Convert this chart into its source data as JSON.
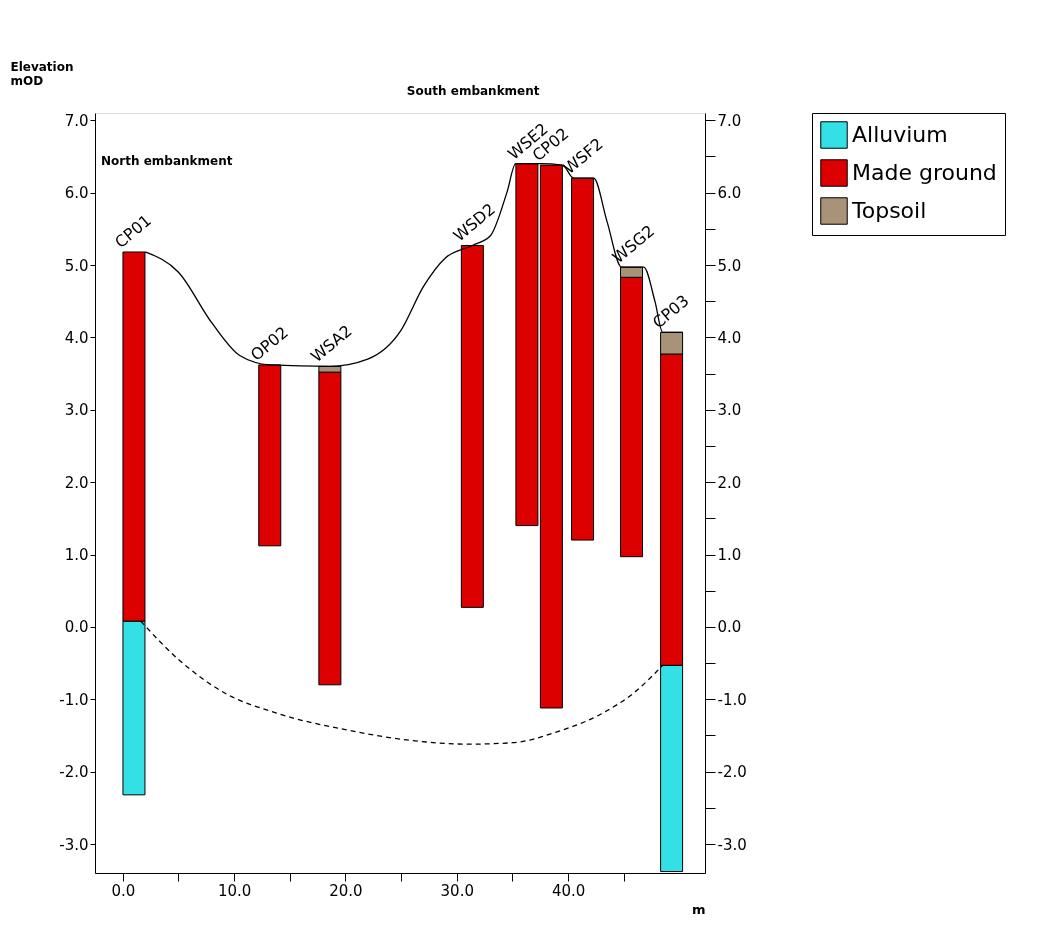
{
  "chart_data": {
    "type": "bar",
    "ylabel": "Elevation\nmOD",
    "xlabel": "m",
    "x": [
      1.0,
      13.2,
      18.6,
      31.4,
      36.3,
      38.5,
      41.3,
      45.7,
      49.3
    ],
    "series": [
      {
        "name": "Alluvium",
        "color": "#33e0e6",
        "base": [
          -2.32,
          null,
          null,
          null,
          null,
          null,
          null,
          null,
          -3.38
        ],
        "values": [
          2.4,
          null,
          null,
          null,
          null,
          null,
          null,
          null,
          2.85
        ]
      },
      {
        "name": "Made ground",
        "color": "#dd0000",
        "base": [
          0.08,
          1.12,
          -0.8,
          0.27,
          1.4,
          -1.12,
          1.2,
          0.97,
          -0.53
        ],
        "values": [
          5.1,
          2.5,
          4.32,
          5.0,
          5.0,
          7.5,
          5.0,
          3.86,
          4.3
        ]
      },
      {
        "name": "Topsoil",
        "color": "#a89278",
        "base": [
          null,
          null,
          3.52,
          null,
          null,
          null,
          null,
          4.83,
          3.77
        ],
        "values": [
          null,
          null,
          0.08,
          null,
          null,
          null,
          null,
          0.14,
          0.3
        ]
      },
      {
        "type": "line",
        "color": "#000000",
        "line_style": "solid",
        "x": [
          2.0,
          5.0,
          8.0,
          10.5,
          13.2,
          18.6,
          22.0,
          25.0,
          27.0,
          29.0,
          31.4,
          33.0,
          34.5,
          35.3,
          37.5,
          39.5,
          40.5,
          42.3,
          43.5,
          44.8,
          46.8,
          47.8,
          48.5,
          50.3
        ],
        "values": [
          5.18,
          4.9,
          4.2,
          3.75,
          3.62,
          3.6,
          3.7,
          4.1,
          4.7,
          5.1,
          5.27,
          5.4,
          6.0,
          6.4,
          6.4,
          6.38,
          6.2,
          6.2,
          5.6,
          4.97,
          4.97,
          4.5,
          4.07,
          4.07
        ]
      },
      {
        "type": "line",
        "color": "#000000",
        "line_style": "dashed",
        "x": [
          1.6,
          5.0,
          9.0,
          14.0,
          20.0,
          26.0,
          31.0,
          35.0,
          39.0,
          43.0,
          46.0,
          48.5
        ],
        "values": [
          0.08,
          -0.45,
          -0.9,
          -1.2,
          -1.42,
          -1.57,
          -1.62,
          -1.6,
          -1.45,
          -1.2,
          -0.9,
          -0.53
        ]
      }
    ],
    "xlim": [
      -2.5,
      52.3
    ],
    "xticks": [
      {
        "value": 0,
        "label": "0.0"
      },
      {
        "value": 5,
        "label": null
      },
      {
        "value": 10,
        "label": "10.0"
      },
      {
        "value": 15,
        "label": null
      },
      {
        "value": 20,
        "label": "20.0"
      },
      {
        "value": 25,
        "label": null
      },
      {
        "value": 30,
        "label": "30.0"
      },
      {
        "value": 35,
        "label": null
      },
      {
        "value": 40,
        "label": "40.0"
      },
      {
        "value": 45,
        "label": null
      }
    ],
    "ylim": [
      -3.4,
      7.1
    ],
    "yticks": [
      {
        "value": -3,
        "label": "-3.0"
      },
      {
        "value": -2,
        "label": "-2.0"
      },
      {
        "value": -1,
        "label": "-1.0"
      },
      {
        "value": 0,
        "label": "0.0"
      },
      {
        "value": 1,
        "label": "1.0"
      },
      {
        "value": 2,
        "label": "2.0"
      },
      {
        "value": 3,
        "label": "3.0"
      },
      {
        "value": 4,
        "label": "4.0"
      },
      {
        "value": 5,
        "label": "5.0"
      },
      {
        "value": 6,
        "label": "6.0"
      },
      {
        "value": 7,
        "label": "7.0"
      }
    ],
    "y2lim": [
      -3.4,
      7.1
    ],
    "y2ticks": [
      {
        "value": -3,
        "label": "-3.0"
      },
      {
        "value": -2.5,
        "label": null
      },
      {
        "value": -2,
        "label": "-2.0"
      },
      {
        "value": -1.5,
        "label": null
      },
      {
        "value": -1,
        "label": "-1.0"
      },
      {
        "value": -0.5,
        "label": null
      },
      {
        "value": 0,
        "label": "0.0"
      },
      {
        "value": 0.5,
        "label": null
      },
      {
        "value": 1,
        "label": "1.0"
      },
      {
        "value": 1.5,
        "label": null
      },
      {
        "value": 2,
        "label": "2.0"
      },
      {
        "value": 2.5,
        "label": null
      },
      {
        "value": 3,
        "label": "3.0"
      },
      {
        "value": 3.5,
        "label": null
      },
      {
        "value": 4,
        "label": "4.0"
      },
      {
        "value": 4.5,
        "label": null
      },
      {
        "value": 5,
        "label": "5.0"
      },
      {
        "value": 5.5,
        "label": null
      },
      {
        "value": 6,
        "label": "6.0"
      },
      {
        "value": 6.5,
        "label": null
      },
      {
        "value": 7,
        "label": "7.0"
      }
    ],
    "annotations": [
      {
        "text": "CP01",
        "x": 1.0,
        "y": 5.18
      },
      {
        "text": "OP02",
        "x": 13.2,
        "y": 3.62
      },
      {
        "text": "WSA2",
        "x": 18.6,
        "y": 3.6
      },
      {
        "text": "WSD2",
        "x": 31.4,
        "y": 5.27
      },
      {
        "text": "WSE2",
        "x": 36.3,
        "y": 6.4
      },
      {
        "text": "CP02",
        "x": 38.5,
        "y": 6.38
      },
      {
        "text": "WSF2",
        "x": 41.3,
        "y": 6.2
      },
      {
        "text": "WSG2",
        "x": 45.7,
        "y": 4.97
      },
      {
        "text": "CP03",
        "x": 49.3,
        "y": 4.07
      },
      "North embankment",
      "South embankment"
    ],
    "legend": "right",
    "grid": false
  }
}
